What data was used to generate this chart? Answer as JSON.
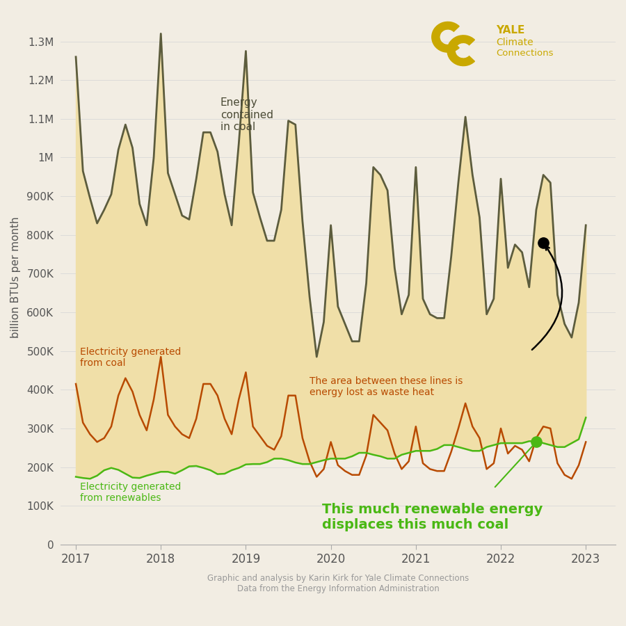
{
  "ylabel": "billion BTUs per month",
  "footnote": "Graphic and analysis by Karin Kirk for Yale Climate Connections\nData from the Energy Information Administration",
  "background_color": "#f2ede3",
  "plot_bg_color": "#f2ede3",
  "coal_energy_color": "#5c5c3d",
  "coal_elec_color": "#b84a00",
  "renewables_color": "#4ab814",
  "fill_color": "#f0dfa8",
  "gold_color": "#c9a800",
  "annotation_coal_text": "Energy\ncontained\nin coal",
  "annotation_elec_coal_text": "Electricity generated\nfrom coal",
  "annotation_renewables_text": "Electricity generated\nfrom renewables",
  "annotation_waste_text": "The area between these lines is\nenergy lost as waste heat",
  "annotation_displace_text": "This much renewable energy\ndisplaces this much coal",
  "ylim": [
    0,
    1380000
  ],
  "yticks": [
    0,
    100000,
    200000,
    300000,
    400000,
    500000,
    600000,
    700000,
    800000,
    900000,
    1000000,
    1100000,
    1200000,
    1300000
  ],
  "ytick_labels": [
    "0",
    "100K",
    "200K",
    "300K",
    "400K",
    "500K",
    "600K",
    "700K",
    "800K",
    "900K",
    "1M",
    "1.1M",
    "1.2M",
    "1.3M"
  ],
  "coal_energy": [
    1260000,
    965000,
    895000,
    830000,
    865000,
    905000,
    1020000,
    1085000,
    1025000,
    880000,
    825000,
    1000000,
    1320000,
    960000,
    905000,
    850000,
    840000,
    945000,
    1065000,
    1065000,
    1015000,
    905000,
    825000,
    1035000,
    1275000,
    910000,
    845000,
    785000,
    785000,
    865000,
    1095000,
    1085000,
    835000,
    640000,
    485000,
    575000,
    825000,
    615000,
    570000,
    525000,
    525000,
    675000,
    975000,
    955000,
    915000,
    715000,
    595000,
    645000,
    975000,
    635000,
    595000,
    585000,
    585000,
    745000,
    935000,
    1105000,
    955000,
    845000,
    595000,
    635000,
    945000,
    715000,
    775000,
    755000,
    665000,
    865000,
    955000,
    935000,
    645000,
    570000,
    535000,
    625000,
    825000
  ],
  "coal_elec": [
    415000,
    315000,
    285000,
    265000,
    275000,
    305000,
    385000,
    430000,
    395000,
    335000,
    295000,
    375000,
    485000,
    335000,
    305000,
    285000,
    275000,
    325000,
    415000,
    415000,
    385000,
    325000,
    285000,
    375000,
    445000,
    305000,
    280000,
    255000,
    245000,
    280000,
    385000,
    385000,
    275000,
    215000,
    175000,
    195000,
    265000,
    205000,
    190000,
    180000,
    180000,
    230000,
    335000,
    315000,
    295000,
    235000,
    195000,
    215000,
    305000,
    210000,
    195000,
    190000,
    190000,
    240000,
    300000,
    365000,
    305000,
    275000,
    195000,
    210000,
    300000,
    235000,
    255000,
    245000,
    215000,
    275000,
    305000,
    300000,
    210000,
    180000,
    170000,
    205000,
    265000
  ],
  "renewables": [
    175000,
    172000,
    170000,
    178000,
    192000,
    198000,
    193000,
    183000,
    173000,
    172000,
    178000,
    183000,
    188000,
    188000,
    183000,
    192000,
    202000,
    203000,
    198000,
    192000,
    182000,
    183000,
    192000,
    198000,
    207000,
    208000,
    208000,
    213000,
    222000,
    222000,
    218000,
    212000,
    208000,
    208000,
    213000,
    218000,
    222000,
    222000,
    222000,
    228000,
    237000,
    237000,
    232000,
    228000,
    222000,
    222000,
    232000,
    237000,
    242000,
    242000,
    242000,
    247000,
    257000,
    257000,
    252000,
    247000,
    242000,
    242000,
    252000,
    257000,
    262000,
    262000,
    262000,
    262000,
    267000,
    267000,
    262000,
    257000,
    252000,
    252000,
    262000,
    272000,
    328000
  ]
}
